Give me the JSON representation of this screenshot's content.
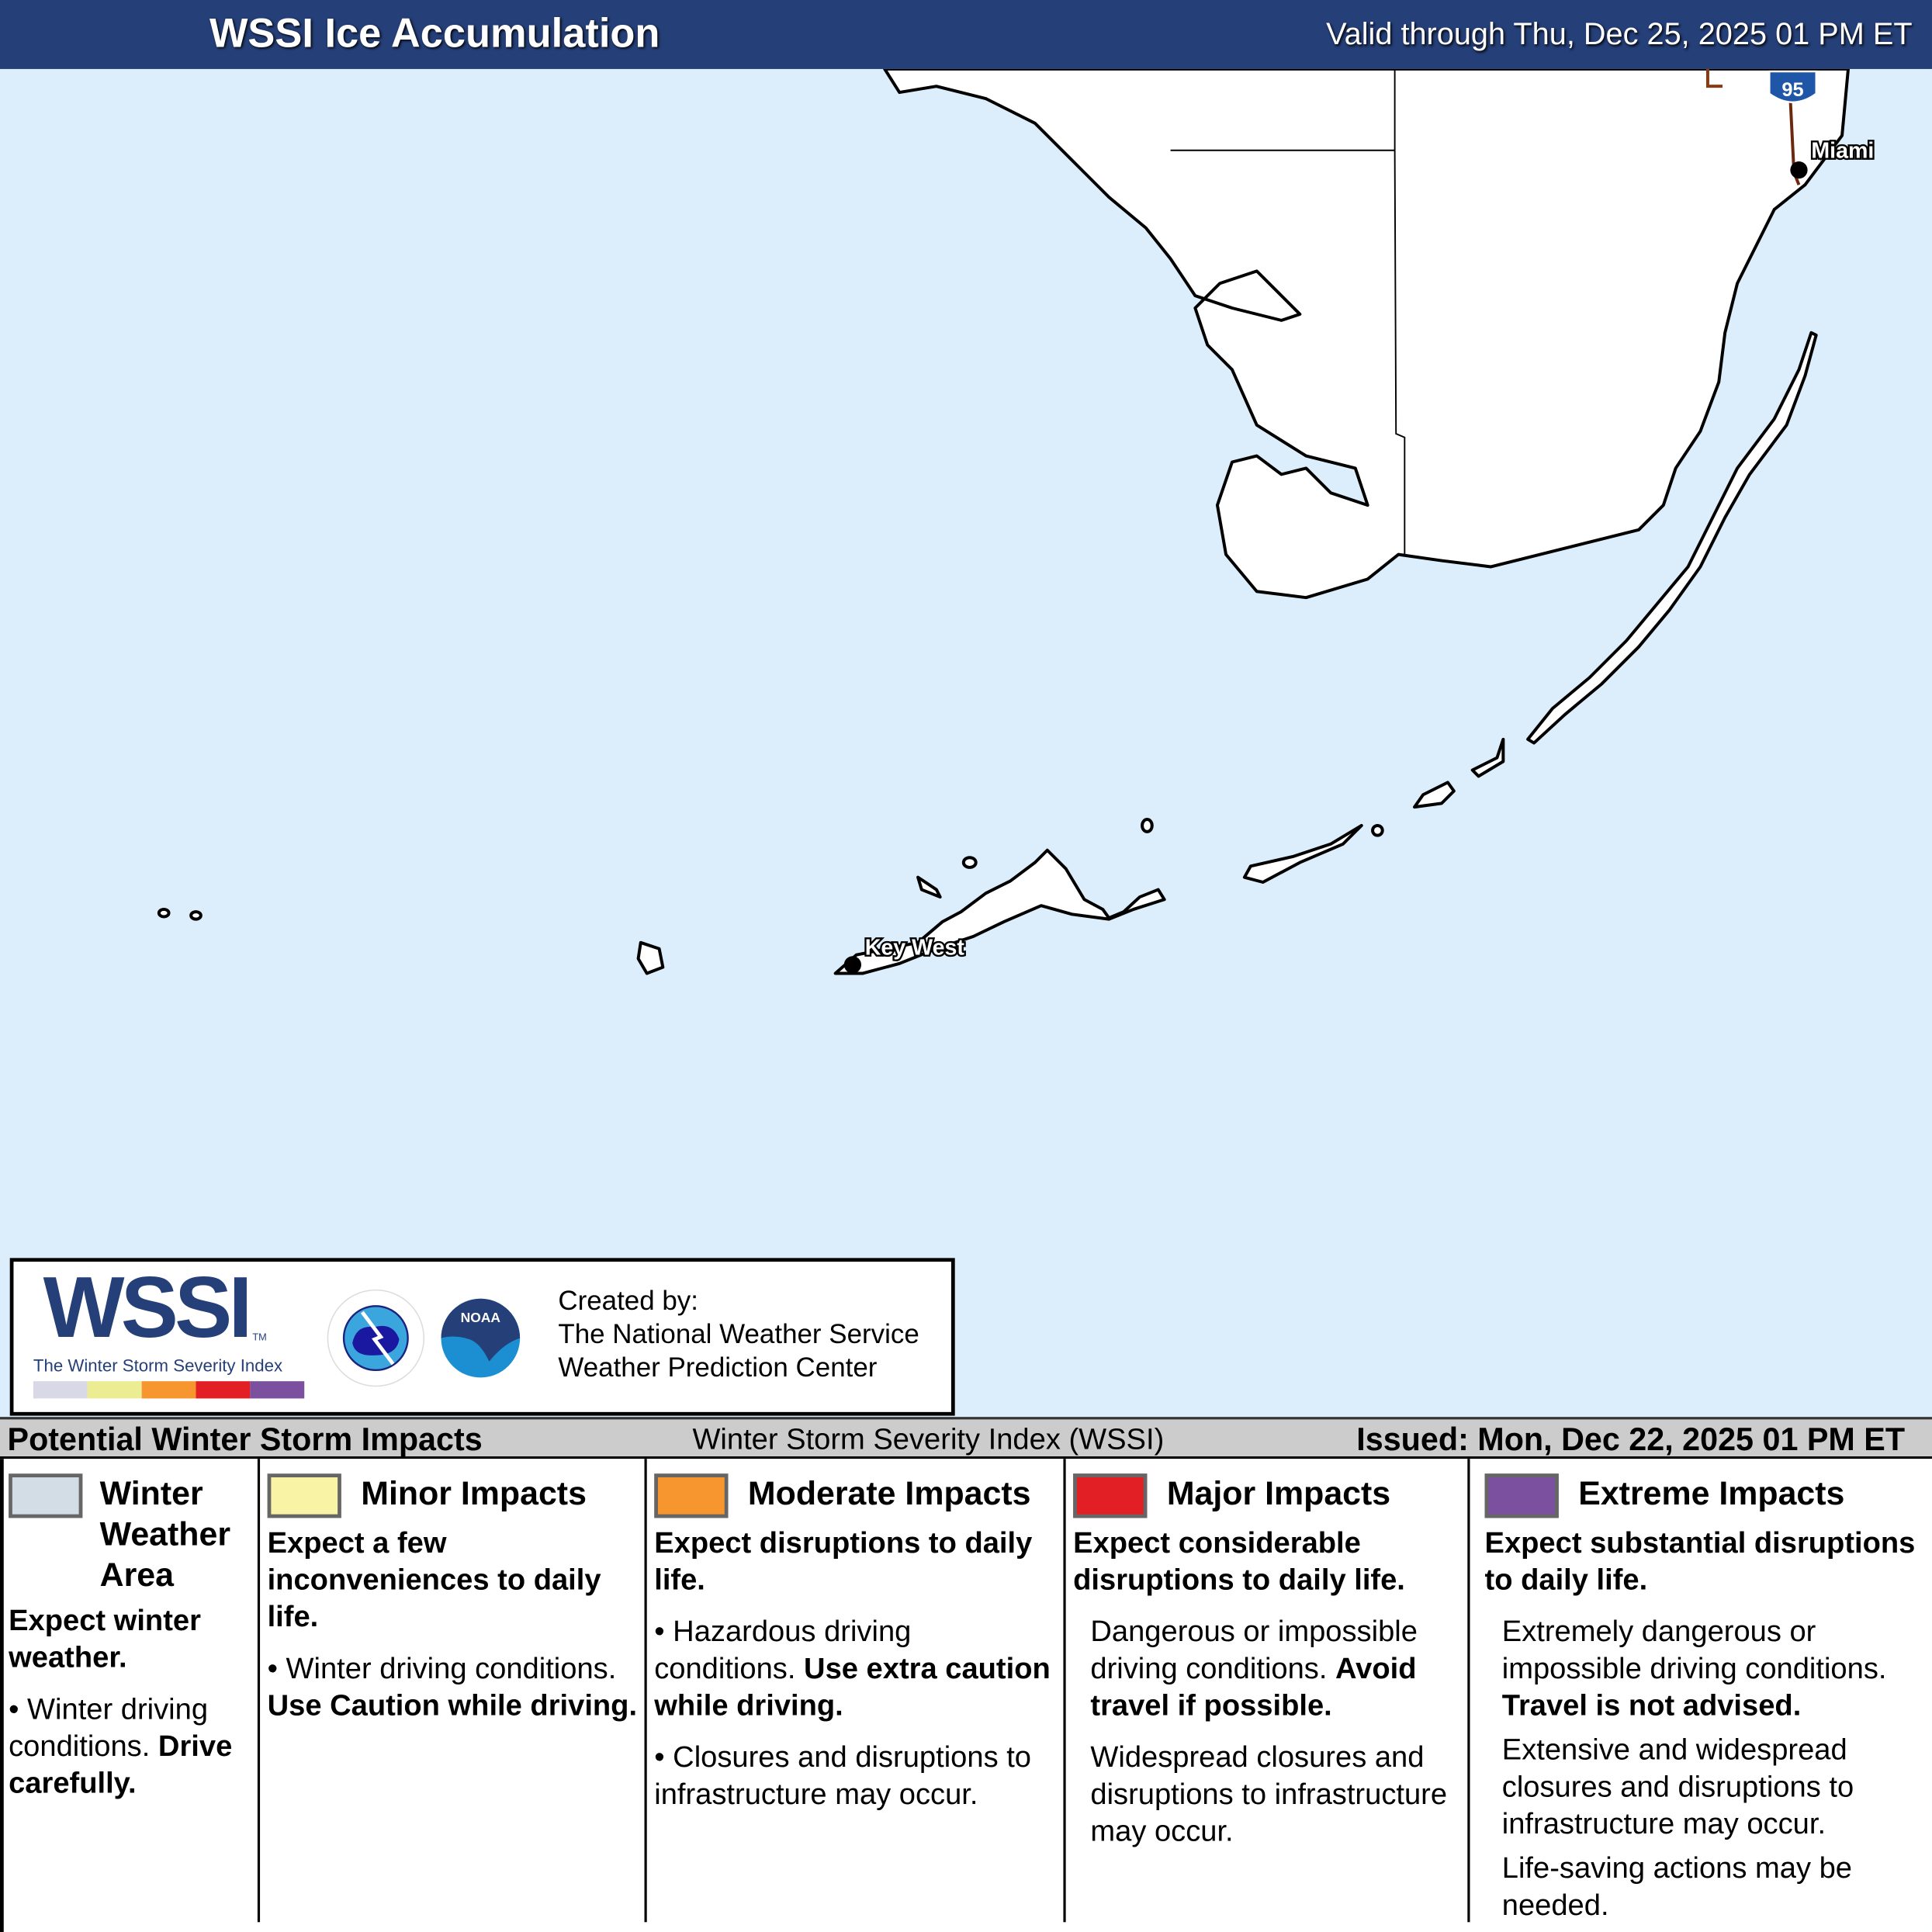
{
  "header": {
    "title": "WSSI Ice Accumulation",
    "valid": "Valid through Thu, Dec 25, 2025 01 PM ET"
  },
  "map": {
    "cities": [
      "Miami",
      "Key West"
    ],
    "highway_shield": "95",
    "colors": {
      "water": "#dcedfc",
      "land": "#ffffff"
    }
  },
  "logo": {
    "wssi": "WSSI",
    "tm": "TM",
    "subtitle": "The Winter Storm Severity Index",
    "nws": "NATIONAL WEATHER SERVICE",
    "noaa": "NOAA",
    "created_by": "Created by:",
    "org1": "The National Weather Service",
    "org2": "Weather Prediction Center"
  },
  "impacts_bar": {
    "title": "Potential Winter Storm Impacts",
    "index_name": "Winter Storm Severity Index (WSSI)",
    "issued": "Issued: Mon, Dec 22, 2025 01 PM ET"
  },
  "legend": [
    {
      "category": "Winter Weather Area",
      "color": "#d3dde6",
      "heading": "Expect winter weather.",
      "text": "Winter driving conditions.",
      "bold": "Drive carefully."
    },
    {
      "category": "Minor Impacts",
      "color": "#f9f3a6",
      "heading": "Expect a few inconveniences to daily life.",
      "text": "Winter driving conditions.",
      "bold": "Use Caution while driving."
    },
    {
      "category": "Moderate Impacts",
      "color": "#f7962f",
      "heading": "Expect disruptions to daily life.",
      "text": "Hazardous driving conditions.",
      "bold": "Use extra caution while driving.",
      "text2": "Closures and disruptions to infrastructure may occur."
    },
    {
      "category": "Major Impacts",
      "color": "#e31f26",
      "heading": "Expect considerable disruptions to daily life.",
      "text": "Dangerous or impossible driving conditions.",
      "bold": "Avoid travel if possible.",
      "text2": "Widespread closures and disruptions to infrastructure may occur."
    },
    {
      "category": "Extreme Impacts",
      "color": "#7b519f",
      "heading": "Expect substantial disruptions to daily life.",
      "text": "Extremely dangerous or impossible driving conditions.",
      "bold": "Travel is not advised.",
      "text2": "Extensive and widespread closures and disruptions to infrastructure may occur.",
      "text3": "Life-saving actions may be needed."
    }
  ]
}
